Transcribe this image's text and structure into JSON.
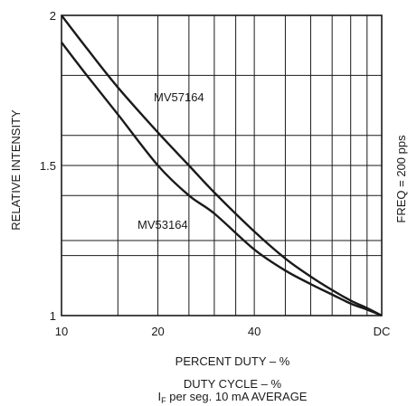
{
  "chart_data": {
    "type": "line",
    "title": "",
    "xlabel": "PERCENT DUTY – %",
    "ylabel": "RELATIVE INTENSITY",
    "side_note": "FREQ = 200 pps",
    "caption_line1": "DUTY CYCLE – %",
    "caption_line2_prefix": "I",
    "caption_line2_sub": "F",
    "caption_line2_rest": " per seg. 10 mA AVERAGE",
    "x_scale": "log",
    "xlim": [
      10,
      100
    ],
    "ylim": [
      1,
      2
    ],
    "x_ticks": [
      {
        "value": 10,
        "label": "10"
      },
      {
        "value": 20,
        "label": "20"
      },
      {
        "value": 40,
        "label": "40"
      },
      {
        "value": 100,
        "label": "DC"
      }
    ],
    "y_ticks": [
      {
        "value": 1,
        "label": "1"
      },
      {
        "value": 1.5,
        "label": "1.5"
      },
      {
        "value": 2,
        "label": "2"
      }
    ],
    "x_grid": [
      10,
      15,
      20,
      25,
      30,
      35,
      40,
      50,
      60,
      70,
      80,
      90,
      100
    ],
    "y_grid": [
      1,
      1.2,
      1.25,
      1.4,
      1.5,
      1.6,
      1.8,
      2
    ],
    "grid": true,
    "series": [
      {
        "name": "MV57164",
        "x": [
          10,
          12,
          15,
          20,
          25,
          30,
          40,
          50,
          60,
          70,
          80,
          90,
          100
        ],
        "y": [
          2.0,
          1.89,
          1.76,
          1.61,
          1.5,
          1.41,
          1.28,
          1.19,
          1.13,
          1.085,
          1.05,
          1.025,
          1.0
        ]
      },
      {
        "name": "MV53164",
        "x": [
          10,
          12,
          15,
          20,
          25,
          30,
          40,
          50,
          60,
          70,
          80,
          90,
          100
        ],
        "y": [
          1.91,
          1.8,
          1.67,
          1.5,
          1.4,
          1.34,
          1.22,
          1.15,
          1.105,
          1.07,
          1.04,
          1.02,
          1.0
        ]
      }
    ]
  }
}
